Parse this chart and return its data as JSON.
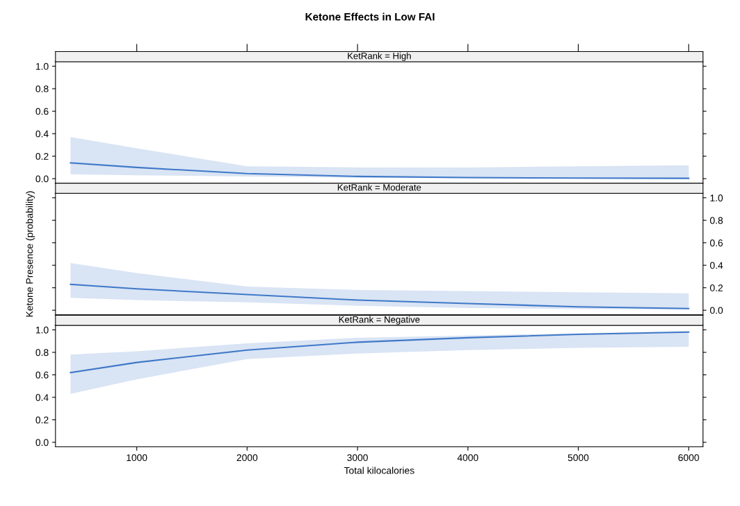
{
  "chart_data": [
    {
      "type": "line",
      "title": "KetRank = High",
      "annotations": [
        "Ketone Effects in Low FAI"
      ],
      "x": [
        400,
        1000,
        2000,
        3000,
        4000,
        5000,
        6000
      ],
      "series": [
        {
          "color": "#3f78c8",
          "values": [
            0.14,
            0.1,
            0.045,
            0.02,
            0.01,
            0.005,
            0.003
          ],
          "lower": [
            0.04,
            0.03,
            0.02,
            0.008,
            0.003,
            0.001,
            0.0
          ],
          "upper": [
            0.37,
            0.27,
            0.11,
            0.1,
            0.1,
            0.11,
            0.12
          ]
        }
      ],
      "xlim": [
        264,
        6130
      ],
      "ylim": [
        -0.04,
        1.04
      ],
      "yticks": [
        {
          "value": 0,
          "label": "0.0"
        },
        {
          "value": 0.2,
          "label": "0.2"
        },
        {
          "value": 0.4,
          "label": "0.4"
        },
        {
          "value": 0.6,
          "label": "0.6"
        },
        {
          "value": 0.8,
          "label": "0.8"
        },
        {
          "value": 1,
          "label": "1.0"
        }
      ],
      "xticks": [
        1000,
        2000,
        3000,
        4000,
        5000,
        6000
      ],
      "tick_labels": "y",
      "grid": false
    },
    {
      "type": "line",
      "title": "KetRank = Moderate",
      "ylabel": "Ketone Presence (probability)",
      "x": [
        400,
        1000,
        2000,
        3000,
        4000,
        5000,
        6000
      ],
      "series": [
        {
          "color": "#3f78c8",
          "values": [
            0.23,
            0.19,
            0.14,
            0.09,
            0.06,
            0.03,
            0.015
          ],
          "lower": [
            0.11,
            0.09,
            0.07,
            0.04,
            0.02,
            0.01,
            0.005
          ],
          "upper": [
            0.42,
            0.33,
            0.21,
            0.18,
            0.17,
            0.16,
            0.15
          ]
        }
      ],
      "xlim": [
        264,
        6130
      ],
      "ylim": [
        -0.04,
        1.04
      ],
      "yticks": [
        {
          "value": 0,
          "label": "0.0"
        },
        {
          "value": 0.2,
          "label": "0.2"
        },
        {
          "value": 0.4,
          "label": "0.4"
        },
        {
          "value": 0.6,
          "label": "0.6"
        },
        {
          "value": 0.8,
          "label": "0.8"
        },
        {
          "value": 1,
          "label": "1.0"
        }
      ],
      "xticks": [
        1000,
        2000,
        3000,
        4000,
        5000,
        6000
      ],
      "tick_labels": "y",
      "grid": false
    },
    {
      "type": "line",
      "title": "KetRank = Negative",
      "xlabel": "Total kilocalories",
      "x": [
        400,
        1000,
        2000,
        3000,
        4000,
        5000,
        6000
      ],
      "series": [
        {
          "color": "#3f78c8",
          "values": [
            0.62,
            0.71,
            0.82,
            0.89,
            0.93,
            0.96,
            0.98
          ],
          "lower": [
            0.43,
            0.56,
            0.74,
            0.79,
            0.82,
            0.84,
            0.85
          ],
          "upper": [
            0.78,
            0.81,
            0.88,
            0.93,
            0.95,
            0.97,
            0.99
          ]
        }
      ],
      "xlim": [
        264,
        6130
      ],
      "ylim": [
        -0.04,
        1.04
      ],
      "yticks": [
        {
          "value": 0,
          "label": "0.0"
        },
        {
          "value": 0.2,
          "label": "0.2"
        },
        {
          "value": 0.4,
          "label": "0.4"
        },
        {
          "value": 0.6,
          "label": "0.6"
        },
        {
          "value": 0.8,
          "label": "0.8"
        },
        {
          "value": 1,
          "label": "1.0"
        }
      ],
      "xticks": [
        1000,
        2000,
        3000,
        4000,
        5000,
        6000
      ],
      "grid": false
    }
  ]
}
